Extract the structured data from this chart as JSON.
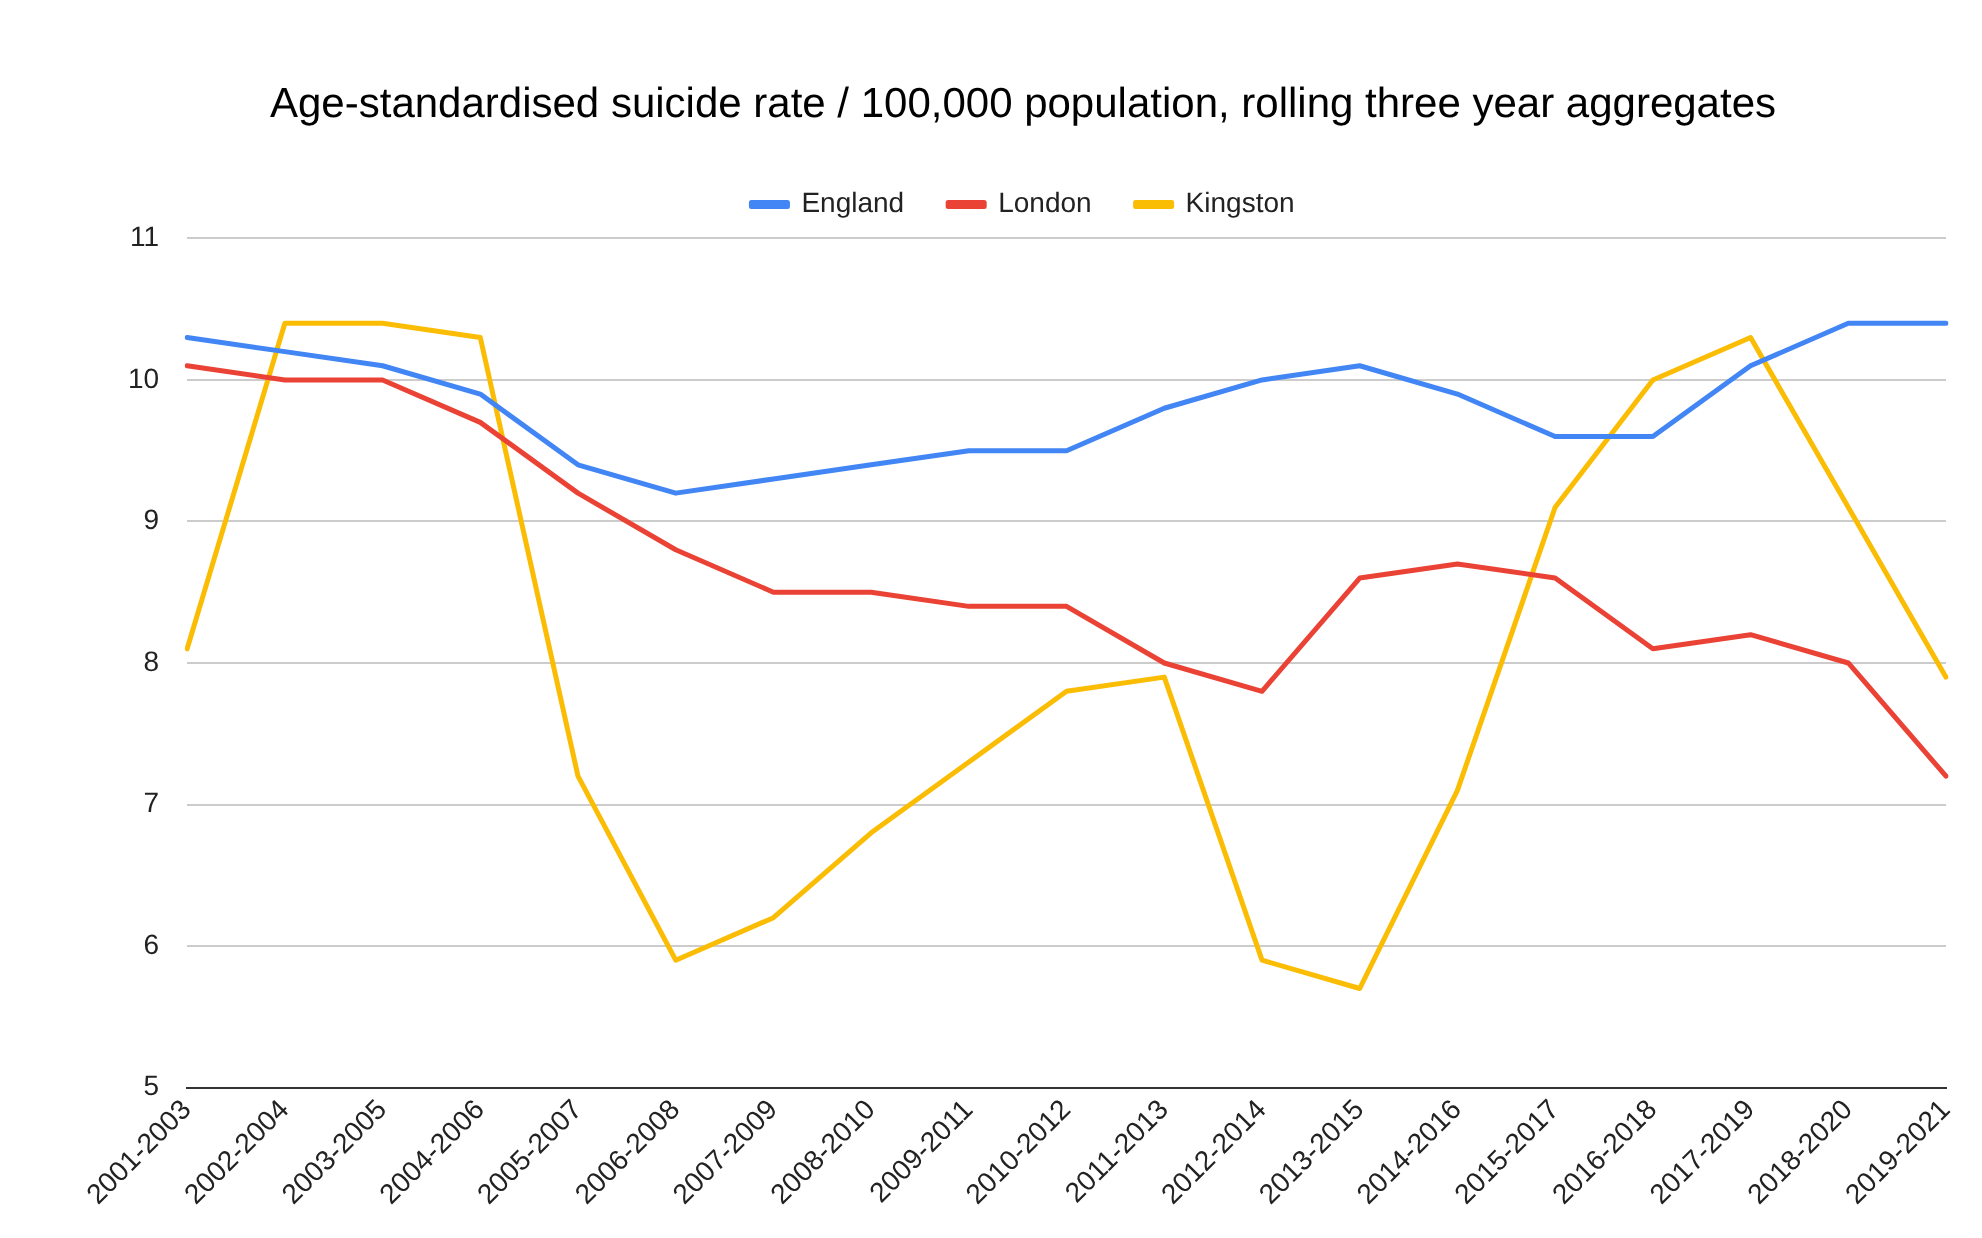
{
  "chart_data": {
    "type": "line",
    "title": "Age-standardised suicide rate / 100,000 population, rolling three year aggregates",
    "categories": [
      "2001-2003",
      "2002-2004",
      "2003-2005",
      "2004-2006",
      "2005-2007",
      "2006-2008",
      "2007-2009",
      "2008-2010",
      "2009-2011",
      "2010-2012",
      "2011-2013",
      "2012-2014",
      "2013-2015",
      "2014-2016",
      "2015-2017",
      "2016-2018",
      "2017-2019",
      "2018-2020",
      "2019-2021"
    ],
    "series": [
      {
        "name": "England",
        "color": "#4285f4",
        "values": [
          10.3,
          10.2,
          10.1,
          9.9,
          9.4,
          9.2,
          9.3,
          9.4,
          9.5,
          9.5,
          9.8,
          10.0,
          10.1,
          9.9,
          9.6,
          9.6,
          10.1,
          10.4,
          10.4
        ]
      },
      {
        "name": "London",
        "color": "#ea4335",
        "values": [
          10.1,
          10.0,
          10.0,
          9.7,
          9.2,
          8.8,
          8.5,
          8.5,
          8.4,
          8.4,
          8.0,
          7.8,
          8.6,
          8.7,
          8.6,
          8.1,
          8.2,
          8.0,
          7.2
        ]
      },
      {
        "name": "Kingston",
        "color": "#fbbc04",
        "values": [
          8.1,
          10.4,
          10.4,
          10.3,
          7.2,
          5.9,
          6.2,
          6.8,
          7.3,
          7.8,
          7.9,
          5.9,
          5.7,
          7.1,
          9.1,
          10.0,
          10.3,
          9.1,
          7.9
        ]
      }
    ],
    "ylim": [
      5,
      11
    ],
    "yticks": [
      5,
      6,
      7,
      8,
      9,
      10,
      11
    ],
    "grid": "y",
    "legend": "top",
    "marker": "none",
    "line_style": "solid"
  }
}
